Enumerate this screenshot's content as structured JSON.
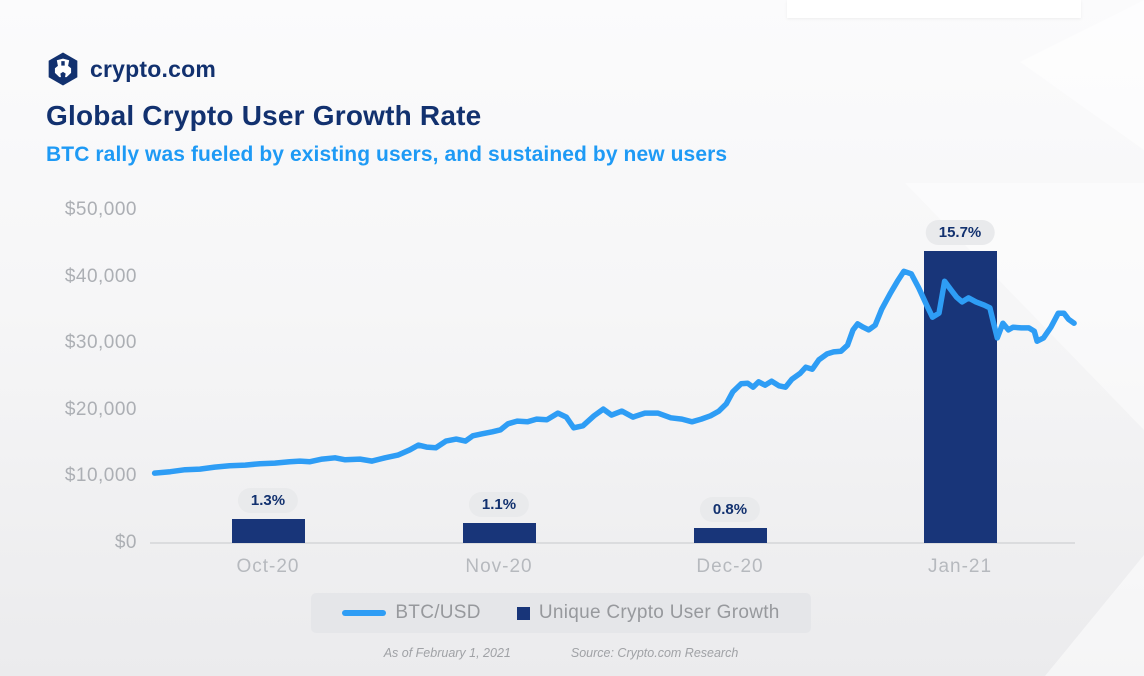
{
  "brand": {
    "name": "crypto.com"
  },
  "header": {
    "title": "Global Crypto User Growth Rate",
    "subtitle": "BTC rally was fueled by existing users, and sustained by new users"
  },
  "legend": {
    "line_label": "BTC/USD",
    "bar_label": "Unique Crypto User Growth"
  },
  "footer": {
    "as_of": "As of February 1, 2021",
    "source": "Source: Crypto.com Research"
  },
  "colors": {
    "navy": "#12316f",
    "bar_navy": "#183579",
    "line_blue": "#2e9df5",
    "subtitle_blue": "#1e9af5",
    "badge_bg": "#e9eaec",
    "axis_gray": "#acafb4"
  },
  "chart_data": {
    "type": "combo",
    "title": "Global Crypto User Growth Rate",
    "subtitle": "BTC rally was fueled by existing users, and sustained by new users",
    "grid": false,
    "legend_position": "bottom",
    "categories": [
      "Oct-20",
      "Nov-20",
      "Dec-20",
      "Jan-21"
    ],
    "bar_series": {
      "name": "Unique Crypto User Growth",
      "unit": "%",
      "values": [
        1.3,
        1.1,
        0.8,
        15.7
      ],
      "labels": [
        "1.3%",
        "1.1%",
        "0.8%",
        "15.7%"
      ]
    },
    "y_axis": {
      "min": 0,
      "max": 50000,
      "ticks": [
        {
          "v": 0,
          "label": "$0"
        },
        {
          "v": 10000,
          "label": "$10,000"
        },
        {
          "v": 20000,
          "label": "$20,000"
        },
        {
          "v": 30000,
          "label": "$30,000"
        },
        {
          "v": 40000,
          "label": "$40,000"
        },
        {
          "v": 50000,
          "label": "$50,000"
        }
      ]
    },
    "line_series": {
      "name": "BTC/USD",
      "unit": "USD",
      "point_format": "[x_fraction_of_timeline, price_usd]",
      "points": [
        [
          0.005,
          10500
        ],
        [
          0.022,
          10700
        ],
        [
          0.038,
          11000
        ],
        [
          0.054,
          11100
        ],
        [
          0.07,
          11400
        ],
        [
          0.086,
          11600
        ],
        [
          0.103,
          11700
        ],
        [
          0.119,
          11900
        ],
        [
          0.135,
          12000
        ],
        [
          0.151,
          12200
        ],
        [
          0.162,
          12300
        ],
        [
          0.173,
          12200
        ],
        [
          0.186,
          12600
        ],
        [
          0.2,
          12800
        ],
        [
          0.211,
          12500
        ],
        [
          0.227,
          12600
        ],
        [
          0.24,
          12300
        ],
        [
          0.254,
          12800
        ],
        [
          0.268,
          13200
        ],
        [
          0.281,
          14000
        ],
        [
          0.29,
          14700
        ],
        [
          0.299,
          14400
        ],
        [
          0.309,
          14300
        ],
        [
          0.32,
          15300
        ],
        [
          0.331,
          15600
        ],
        [
          0.341,
          15300
        ],
        [
          0.349,
          16100
        ],
        [
          0.359,
          16400
        ],
        [
          0.37,
          16700
        ],
        [
          0.379,
          17000
        ],
        [
          0.387,
          17900
        ],
        [
          0.397,
          18300
        ],
        [
          0.408,
          18200
        ],
        [
          0.418,
          18600
        ],
        [
          0.429,
          18500
        ],
        [
          0.441,
          19500
        ],
        [
          0.45,
          18900
        ],
        [
          0.458,
          17300
        ],
        [
          0.468,
          17600
        ],
        [
          0.48,
          19100
        ],
        [
          0.49,
          20100
        ],
        [
          0.499,
          19200
        ],
        [
          0.51,
          19800
        ],
        [
          0.522,
          18900
        ],
        [
          0.535,
          19500
        ],
        [
          0.549,
          19500
        ],
        [
          0.563,
          18800
        ],
        [
          0.575,
          18600
        ],
        [
          0.586,
          18200
        ],
        [
          0.596,
          18600
        ],
        [
          0.606,
          19100
        ],
        [
          0.615,
          19800
        ],
        [
          0.623,
          20900
        ],
        [
          0.63,
          22700
        ],
        [
          0.639,
          23900
        ],
        [
          0.646,
          24000
        ],
        [
          0.652,
          23400
        ],
        [
          0.658,
          24200
        ],
        [
          0.665,
          23700
        ],
        [
          0.672,
          24300
        ],
        [
          0.68,
          23600
        ],
        [
          0.687,
          23400
        ],
        [
          0.694,
          24600
        ],
        [
          0.703,
          25500
        ],
        [
          0.709,
          26400
        ],
        [
          0.716,
          26100
        ],
        [
          0.723,
          27500
        ],
        [
          0.732,
          28400
        ],
        [
          0.739,
          28700
        ],
        [
          0.747,
          28800
        ],
        [
          0.754,
          29700
        ],
        [
          0.76,
          32000
        ],
        [
          0.765,
          32900
        ],
        [
          0.771,
          32400
        ],
        [
          0.777,
          32000
        ],
        [
          0.784,
          32700
        ],
        [
          0.791,
          35100
        ],
        [
          0.8,
          37400
        ],
        [
          0.808,
          39300
        ],
        [
          0.815,
          40800
        ],
        [
          0.823,
          40400
        ],
        [
          0.831,
          38300
        ],
        [
          0.84,
          35600
        ],
        [
          0.846,
          33900
        ],
        [
          0.853,
          34500
        ],
        [
          0.859,
          39300
        ],
        [
          0.866,
          38000
        ],
        [
          0.872,
          36900
        ],
        [
          0.878,
          36200
        ],
        [
          0.885,
          36800
        ],
        [
          0.893,
          36200
        ],
        [
          0.902,
          35700
        ],
        [
          0.908,
          35300
        ],
        [
          0.912,
          33000
        ],
        [
          0.916,
          30800
        ],
        [
          0.922,
          33000
        ],
        [
          0.928,
          32000
        ],
        [
          0.933,
          32400
        ],
        [
          0.942,
          32300
        ],
        [
          0.95,
          32300
        ],
        [
          0.956,
          31800
        ],
        [
          0.959,
          30300
        ],
        [
          0.966,
          30800
        ],
        [
          0.974,
          32400
        ],
        [
          0.982,
          34500
        ],
        [
          0.988,
          34500
        ],
        [
          0.993,
          33600
        ],
        [
          0.999,
          33000
        ]
      ]
    }
  }
}
